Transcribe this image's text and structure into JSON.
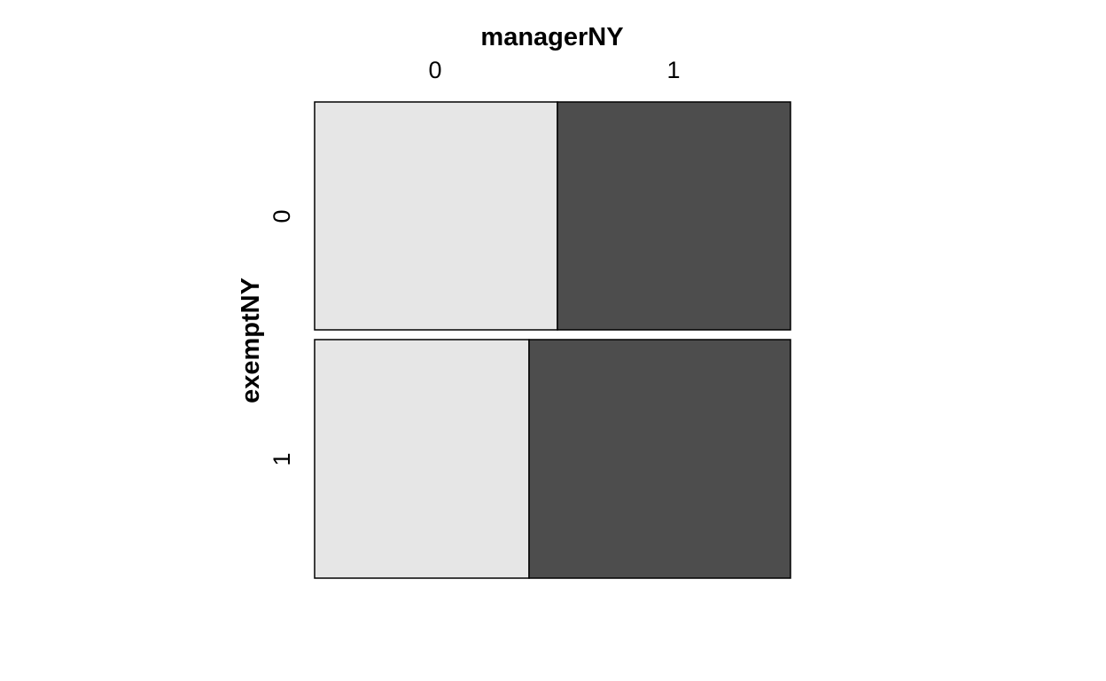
{
  "chart_data": {
    "type": "mosaic",
    "xlabel": "managerNY",
    "ylabel": "exemptNY",
    "x_categories": [
      "0",
      "1"
    ],
    "y_categories": [
      "0",
      "1"
    ],
    "rows": [
      {
        "category": "0",
        "share_of_total": 0.489,
        "proportions": [
          0.51,
          0.49
        ]
      },
      {
        "category": "1",
        "share_of_total": 0.511,
        "proportions": [
          0.45,
          0.55
        ]
      }
    ],
    "colors": {
      "0": "#e6e6e6",
      "1": "#4d4d4d"
    }
  }
}
